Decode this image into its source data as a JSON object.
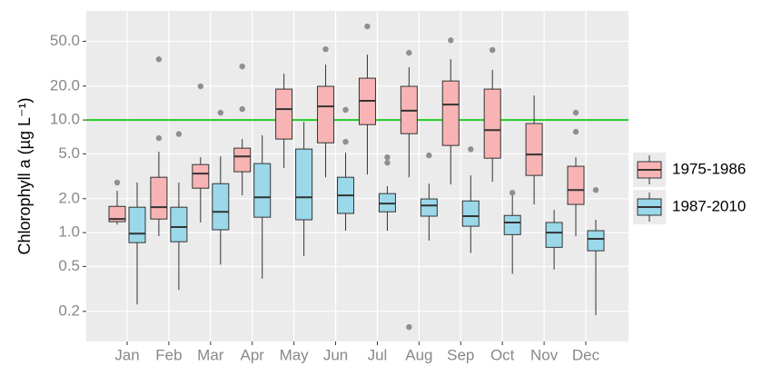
{
  "chart_data": {
    "type": "boxplot",
    "y_label": "Chlorophyll a (µg L⁻¹)",
    "log_y": true,
    "grid": true,
    "legend_position": "right",
    "categories": [
      "Jan",
      "Feb",
      "Mar",
      "Apr",
      "May",
      "Jun",
      "Jul",
      "Aug",
      "Sep",
      "Oct",
      "Nov",
      "Dec"
    ],
    "ylim": [
      0.108,
      93
    ],
    "yticks": [
      0.2,
      0.5,
      {
        "value": 1,
        "label": "1.0"
      },
      {
        "value": 2,
        "label": "2.0"
      },
      {
        "value": 5,
        "label": "5.0"
      },
      {
        "value": 10,
        "label": "10.0"
      },
      {
        "value": 20,
        "label": "20.0"
      },
      {
        "value": 50,
        "label": "50.0"
      }
    ],
    "hline": {
      "value": 10,
      "color": "#22cc22"
    },
    "series": [
      {
        "name": "1975-1986",
        "color": "#f8b4b4",
        "boxes": [
          {
            "low": 1.18,
            "q1": 1.25,
            "median": 1.32,
            "q3": 1.71,
            "high": 2.35,
            "outliers": [
              2.78
            ]
          },
          {
            "low": 0.93,
            "q1": 1.32,
            "median": 1.68,
            "q3": 3.1,
            "high": 5.22,
            "outliers": [
              6.9,
              34.6
            ]
          },
          {
            "low": 1.23,
            "q1": 2.48,
            "median": 3.34,
            "q3": 4.02,
            "high": 4.67,
            "outliers": [
              19.9
            ]
          },
          {
            "low": 2.14,
            "q1": 3.47,
            "median": 4.75,
            "q3": 5.62,
            "high": 6.77,
            "outliers": [
              12.5,
              29.9
            ]
          },
          {
            "low": 3.74,
            "q1": 6.77,
            "median": 12.5,
            "q3": 18.8,
            "high": 25.7,
            "outliers": []
          },
          {
            "low": 3.1,
            "q1": 6.27,
            "median": 13.2,
            "q3": 19.9,
            "high": 31,
            "outliers": [
              42.5
            ]
          },
          {
            "low": 3.28,
            "q1": 9.1,
            "median": 14.8,
            "q3": 23.5,
            "high": 38,
            "outliers": [
              67.8
            ]
          },
          {
            "low": 3.1,
            "q1": 7.56,
            "median": 12.1,
            "q3": 19.9,
            "high": 29.4,
            "outliers": [
              39.5,
              0.145
            ]
          },
          {
            "low": 2.68,
            "q1": 5.94,
            "median": 13.7,
            "q3": 22.2,
            "high": 34.6,
            "outliers": [
              51
            ]
          },
          {
            "low": 2.83,
            "q1": 4.58,
            "median": 8.14,
            "q3": 18.8,
            "high": 27.8,
            "outliers": [
              41.8
            ]
          },
          {
            "low": 1.78,
            "q1": 3.22,
            "median": 4.94,
            "q3": 9.3,
            "high": 16.5,
            "outliers": []
          },
          {
            "low": 0.93,
            "q1": 1.78,
            "median": 2.39,
            "q3": 3.88,
            "high": 4.67,
            "outliers": [
              11.6,
              7.86
            ]
          }
        ]
      },
      {
        "name": "1987-2010",
        "color": "#9ad8ea",
        "boxes": [
          {
            "low": 0.23,
            "q1": 0.815,
            "median": 0.98,
            "q3": 1.68,
            "high": 2.78,
            "outliers": []
          },
          {
            "low": 0.31,
            "q1": 0.83,
            "median": 1.12,
            "q3": 1.68,
            "high": 2.78,
            "outliers": [
              7.5
            ]
          },
          {
            "low": 0.52,
            "q1": 1.06,
            "median": 1.53,
            "q3": 2.72,
            "high": 4.75,
            "outliers": [
              11.6
            ]
          },
          {
            "low": 0.39,
            "q1": 1.37,
            "median": 2.06,
            "q3": 4.1,
            "high": 7.3,
            "outliers": []
          },
          {
            "low": 0.62,
            "q1": 1.3,
            "median": 2.06,
            "q3": 5.52,
            "high": 9.6,
            "outliers": []
          },
          {
            "low": 1.04,
            "q1": 1.48,
            "median": 2.14,
            "q3": 3.1,
            "high": 5.12,
            "outliers": [
              12.3,
              6.4
            ]
          },
          {
            "low": 1.04,
            "q1": 1.53,
            "median": 1.81,
            "q3": 2.22,
            "high": 2.58,
            "outliers": [
              4.67,
              4.17
            ]
          },
          {
            "low": 0.85,
            "q1": 1.4,
            "median": 1.74,
            "q3": 1.99,
            "high": 2.72,
            "outliers": [
              4.85
            ]
          },
          {
            "low": 0.66,
            "q1": 1.14,
            "median": 1.4,
            "q3": 1.91,
            "high": 3.22,
            "outliers": [
              5.5
            ]
          },
          {
            "low": 0.43,
            "q1": 0.96,
            "median": 1.23,
            "q3": 1.42,
            "high": 2.26,
            "outliers": [
              2.26
            ]
          },
          {
            "low": 0.47,
            "q1": 0.74,
            "median": 1,
            "q3": 1.23,
            "high": 1.59,
            "outliers": []
          },
          {
            "low": 0.185,
            "q1": 0.69,
            "median": 0.88,
            "q3": 1.04,
            "high": 1.3,
            "outliers": [
              2.39
            ]
          }
        ]
      }
    ]
  }
}
